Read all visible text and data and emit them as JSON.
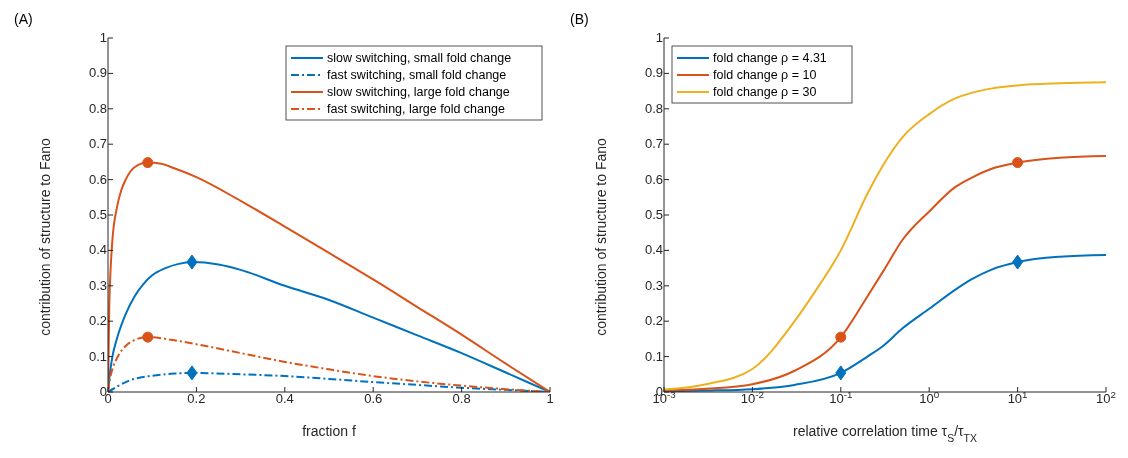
{
  "chart_data": [
    {
      "type": "line",
      "title": "(A)",
      "xlabel": "fraction f",
      "ylabel": "contribution of structure to Fano",
      "xlim": [
        0,
        1
      ],
      "xticks": [
        0,
        0.2,
        0.4,
        0.6,
        0.8,
        1
      ],
      "ylim": [
        0,
        1
      ],
      "yticks": [
        0,
        0.1,
        0.2,
        0.3,
        0.4,
        0.5,
        0.6,
        0.7,
        0.8,
        0.9,
        1
      ],
      "grid": false,
      "legend": "top right",
      "marker": "none",
      "series": [
        {
          "name": "slow switching, small fold change",
          "color": "#0072bd",
          "line_style": "solid",
          "x": [
            0,
            0.005,
            0.01,
            0.02,
            0.04,
            0.06,
            0.08,
            0.1,
            0.13,
            0.16,
            0.19,
            0.25,
            0.3,
            0.4,
            0.5,
            0.6,
            0.7,
            0.8,
            0.9,
            1
          ],
          "values": [
            0,
            0.06,
            0.1,
            0.15,
            0.22,
            0.27,
            0.305,
            0.33,
            0.35,
            0.362,
            0.367,
            0.36,
            0.345,
            0.3,
            0.26,
            0.21,
            0.16,
            0.11,
            0.055,
            0
          ]
        },
        {
          "name": "fast switching, small fold change",
          "color": "#0072bd",
          "line_style": "dashed",
          "x": [
            0,
            0.02,
            0.05,
            0.1,
            0.15,
            0.19,
            0.3,
            0.4,
            0.5,
            0.6,
            0.7,
            0.8,
            0.9,
            1
          ],
          "values": [
            0,
            0.015,
            0.033,
            0.046,
            0.052,
            0.054,
            0.05,
            0.045,
            0.037,
            0.028,
            0.02,
            0.012,
            0.006,
            0
          ]
        },
        {
          "name": "slow switching, large fold change",
          "color": "#d95319",
          "line_style": "solid",
          "x": [
            0,
            0.003,
            0.006,
            0.01,
            0.02,
            0.03,
            0.04,
            0.06,
            0.09,
            0.12,
            0.15,
            0.2,
            0.3,
            0.4,
            0.5,
            0.6,
            0.7,
            0.8,
            0.9,
            1
          ],
          "values": [
            0,
            0.25,
            0.35,
            0.43,
            0.52,
            0.57,
            0.6,
            0.635,
            0.648,
            0.645,
            0.632,
            0.607,
            0.54,
            0.467,
            0.393,
            0.318,
            0.24,
            0.162,
            0.08,
            0
          ]
        },
        {
          "name": "fast switching, large fold change",
          "color": "#d95319",
          "line_style": "dashed",
          "x": [
            0,
            0.005,
            0.01,
            0.02,
            0.04,
            0.06,
            0.09,
            0.12,
            0.15,
            0.2,
            0.3,
            0.4,
            0.5,
            0.6,
            0.7,
            0.8,
            0.9,
            1
          ],
          "values": [
            0,
            0.04,
            0.065,
            0.095,
            0.13,
            0.147,
            0.155,
            0.152,
            0.146,
            0.135,
            0.11,
            0.085,
            0.064,
            0.045,
            0.03,
            0.018,
            0.008,
            0
          ]
        },
        {
          "type": "scatter",
          "marker": "circle",
          "color": "#d95319",
          "x": [
            0.09,
            0.09
          ],
          "values": [
            0.648,
            0.155
          ]
        },
        {
          "type": "scatter",
          "marker": "diamond",
          "color": "#0072bd",
          "x": [
            0.19,
            0.19
          ],
          "values": [
            0.367,
            0.054
          ]
        }
      ]
    },
    {
      "type": "line",
      "title": "(B)",
      "xlabel": "relative correlation time τ$_{S}$/τ$_{TX}$",
      "ylabel": "contribution of structure to Fano",
      "log": "x",
      "xlim": [
        0.001,
        100
      ],
      "xticks": [
        {
          "value": 0.001,
          "label": "10$^{-3}$"
        },
        {
          "value": 0.01,
          "label": "10$^{-2}$"
        },
        {
          "value": 0.1,
          "label": "10$^{-1}$"
        },
        {
          "value": 1,
          "label": "10$^{0}$"
        },
        {
          "value": 10,
          "label": "10$^{1}$"
        },
        {
          "value": 100,
          "label": "10$^{2}$"
        }
      ],
      "ylim": [
        0,
        1
      ],
      "yticks": [
        0,
        0.1,
        0.2,
        0.3,
        0.4,
        0.5,
        0.6,
        0.7,
        0.8,
        0.9,
        1
      ],
      "grid": false,
      "legend": "top left",
      "marker": "none",
      "series": [
        {
          "name": "fold change  ρ = 4.31",
          "color": "#0072bd",
          "line_style": "solid",
          "x": [
            0.001,
            0.003,
            0.01,
            0.03,
            0.1,
            0.2,
            0.3,
            0.5,
            1,
            2,
            3,
            5,
            10,
            30,
            100
          ],
          "values": [
            0.002,
            0.004,
            0.008,
            0.02,
            0.054,
            0.1,
            0.13,
            0.18,
            0.235,
            0.29,
            0.318,
            0.345,
            0.367,
            0.382,
            0.387
          ]
        },
        {
          "name": "fold change  ρ = 10",
          "color": "#d95319",
          "line_style": "solid",
          "x": [
            0.001,
            0.003,
            0.01,
            0.03,
            0.1,
            0.2,
            0.3,
            0.5,
            1,
            2,
            3,
            5,
            10,
            30,
            100
          ],
          "values": [
            0.004,
            0.009,
            0.022,
            0.06,
            0.155,
            0.27,
            0.34,
            0.43,
            0.51,
            0.58,
            0.605,
            0.63,
            0.648,
            0.662,
            0.667
          ]
        },
        {
          "name": "fold change  ρ = 30",
          "color": "#edb120",
          "line_style": "solid",
          "x": [
            0.001,
            0.003,
            0.01,
            0.03,
            0.05,
            0.1,
            0.2,
            0.3,
            0.5,
            1,
            2,
            3,
            5,
            10,
            30,
            100
          ],
          "values": [
            0.007,
            0.022,
            0.065,
            0.2,
            0.28,
            0.4,
            0.56,
            0.64,
            0.72,
            0.785,
            0.83,
            0.845,
            0.857,
            0.866,
            0.872,
            0.875
          ]
        },
        {
          "type": "scatter",
          "marker": "circle",
          "color": "#d95319",
          "x": [
            0.1,
            10
          ],
          "values": [
            0.155,
            0.648
          ]
        },
        {
          "type": "scatter",
          "marker": "diamond",
          "color": "#0072bd",
          "x": [
            0.1,
            10
          ],
          "values": [
            0.054,
            0.367
          ]
        }
      ]
    }
  ]
}
